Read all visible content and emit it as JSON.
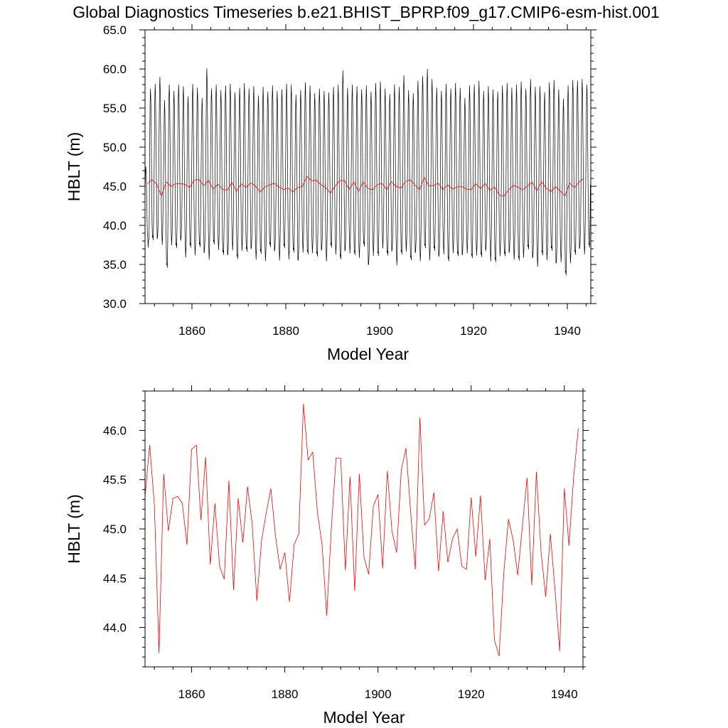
{
  "page_title": "Global Diagnostics Timeseries b.e21.BHIST_BPRP.f09_g17.CMIP6-esm-hist.001",
  "chart_data": [
    {
      "type": "line",
      "title": "Global Diagnostics Timeseries b.e21.BHIST_BPRP.f09_g17.CMIP6-esm-hist.001",
      "xlabel": "Model Year",
      "ylabel": "HBLT (m)",
      "xlim": [
        1850,
        1945
      ],
      "ylim": [
        30.0,
        65.0
      ],
      "x_ticks": [
        1860,
        1880,
        1900,
        1920,
        1940
      ],
      "x_tick_labels": [
        "1860",
        "1880",
        "1900",
        "1920",
        "1940"
      ],
      "y_ticks": [
        30,
        35,
        40,
        45,
        50,
        55,
        60,
        65
      ],
      "y_tick_labels": [
        "30.0",
        "35.0",
        "40.0",
        "45.0",
        "50.0",
        "55.0",
        "60.0",
        "65.0"
      ],
      "grid": false,
      "colors": {
        "monthly": "#000000",
        "annual": "#ff0000"
      },
      "series": [
        {
          "kind": "monthly",
          "start_year": 1850,
          "step_years": 0.08333,
          "seasonal_max": [
            47.5,
            57.5,
            58.1,
            59.0,
            56.0,
            58.0,
            57.2,
            58.0,
            57.8,
            56.5,
            58.1,
            57.6,
            56.3,
            60.1,
            57.5,
            58.0,
            57.3,
            57.9,
            58.1,
            57.0,
            57.6,
            58.2,
            57.5,
            57.8,
            56.6,
            57.7,
            57.1,
            57.9,
            57.2,
            57.4,
            58.1,
            58.0,
            56.7,
            57.3,
            58.3,
            57.9,
            56.9,
            57.5,
            57.2,
            57.0,
            57.7,
            58.0,
            59.8,
            57.6,
            58.0,
            57.8,
            57.4,
            57.9,
            57.1,
            58.2,
            58.4,
            57.5,
            56.8,
            58.0,
            57.7,
            59.2,
            57.3,
            56.9,
            58.5,
            59.1,
            60.0,
            58.7,
            57.6,
            57.2,
            58.1,
            57.5,
            58.2,
            57.6,
            56.3,
            57.9,
            58.0,
            58.5,
            57.2,
            57.8,
            57.4,
            57.1,
            57.9,
            58.2,
            57.6,
            58.0,
            58.4,
            57.5,
            58.7,
            57.7,
            57.8,
            57.0,
            58.3,
            58.6,
            57.4,
            56.2,
            57.9,
            58.6,
            58.5,
            58.7,
            58.0
          ],
          "seasonal_min": [
            37.5,
            38.0,
            38.5,
            38.2,
            34.8,
            37.8,
            37.0,
            38.3,
            36.6,
            37.4,
            36.5,
            37.1,
            36.7,
            36.3,
            37.8,
            37.2,
            36.1,
            36.4,
            37.5,
            35.9,
            37.1,
            36.5,
            37.2,
            36.3,
            36.6,
            35.8,
            37.1,
            36.9,
            36.2,
            37.3,
            36.0,
            36.4,
            35.7,
            37.2,
            36.5,
            36.8,
            35.9,
            37.0,
            36.1,
            37.4,
            36.6,
            35.5,
            36.9,
            37.1,
            36.4,
            36.2,
            37.2,
            35.1,
            36.8,
            36.3,
            37.4,
            36.0,
            36.9,
            35.6,
            36.5,
            37.0,
            35.4,
            36.7,
            36.1,
            37.3,
            35.9,
            36.6,
            36.2,
            37.0,
            35.6,
            36.8,
            35.9,
            36.4,
            37.1,
            36.0,
            36.5,
            35.8,
            37.0,
            36.1,
            35.5,
            36.4,
            35.9,
            36.7,
            36.3,
            35.7,
            36.2,
            36.8,
            36.0,
            35.4,
            36.4,
            35.9,
            36.6,
            35.3,
            36.0,
            33.8,
            35.5,
            36.1,
            37.2,
            37.0,
            37.4
          ]
        },
        {
          "kind": "annual",
          "start_year": 1850.5,
          "step_years": 1,
          "values": [
            45.33,
            45.85,
            45.25,
            43.74,
            45.56,
            44.98,
            45.31,
            45.33,
            45.26,
            44.84,
            45.81,
            45.85,
            45.09,
            45.73,
            44.64,
            45.26,
            44.62,
            44.49,
            45.49,
            44.38,
            45.31,
            44.86,
            45.43,
            45.05,
            44.27,
            44.88,
            45.16,
            45.41,
            44.93,
            44.59,
            44.76,
            44.26,
            44.84,
            44.95,
            46.27,
            45.7,
            45.78,
            45.17,
            44.84,
            44.12,
            45.02,
            45.72,
            45.72,
            44.58,
            45.53,
            44.37,
            45.56,
            44.71,
            44.54,
            45.23,
            45.35,
            44.6,
            45.59,
            44.98,
            44.76,
            45.6,
            45.82,
            45.18,
            44.59,
            46.13,
            45.04,
            45.1,
            45.37,
            44.57,
            45.18,
            44.66,
            44.9,
            45.0,
            44.62,
            44.59,
            45.32,
            44.72,
            45.34,
            44.48,
            44.9,
            43.87,
            43.71,
            44.55,
            45.1,
            44.89,
            44.53,
            45.03,
            45.52,
            44.43,
            45.58,
            44.77,
            44.31,
            44.95,
            44.38,
            43.76,
            45.41,
            44.83,
            45.53,
            46.02
          ]
        }
      ]
    },
    {
      "type": "line",
      "title": "",
      "xlabel": "Model Year",
      "ylabel": "HBLT (m)",
      "xlim": [
        1850,
        1944
      ],
      "ylim": [
        43.6,
        46.4
      ],
      "x_ticks": [
        1860,
        1880,
        1900,
        1920,
        1940
      ],
      "x_tick_labels": [
        "1860",
        "1880",
        "1900",
        "1920",
        "1940"
      ],
      "y_ticks": [
        44.0,
        44.5,
        45.0,
        45.5,
        46.0
      ],
      "y_tick_labels": [
        "44.0",
        "44.5",
        "45.0",
        "45.5",
        "46.0"
      ],
      "grid": false,
      "colors": {
        "annual": "#ff0000"
      },
      "series": [
        {
          "kind": "annual",
          "start_year": 1850,
          "step_years": 1,
          "values": [
            45.33,
            45.85,
            45.25,
            43.74,
            45.56,
            44.98,
            45.31,
            45.33,
            45.26,
            44.84,
            45.81,
            45.85,
            45.09,
            45.73,
            44.64,
            45.26,
            44.62,
            44.49,
            45.49,
            44.38,
            45.31,
            44.86,
            45.43,
            45.05,
            44.27,
            44.88,
            45.16,
            45.41,
            44.93,
            44.59,
            44.76,
            44.26,
            44.84,
            44.95,
            46.27,
            45.7,
            45.78,
            45.17,
            44.84,
            44.12,
            45.02,
            45.72,
            45.72,
            44.58,
            45.53,
            44.37,
            45.56,
            44.71,
            44.54,
            45.23,
            45.35,
            44.6,
            45.59,
            44.98,
            44.76,
            45.6,
            45.82,
            45.18,
            44.59,
            46.13,
            45.04,
            45.1,
            45.37,
            44.57,
            45.18,
            44.66,
            44.9,
            45.0,
            44.62,
            44.59,
            45.32,
            44.72,
            45.34,
            44.48,
            44.9,
            43.87,
            43.71,
            44.55,
            45.1,
            44.89,
            44.53,
            45.03,
            45.52,
            44.43,
            45.58,
            44.77,
            44.31,
            44.95,
            44.38,
            43.76,
            45.41,
            44.83,
            45.53,
            46.02
          ]
        }
      ]
    }
  ]
}
